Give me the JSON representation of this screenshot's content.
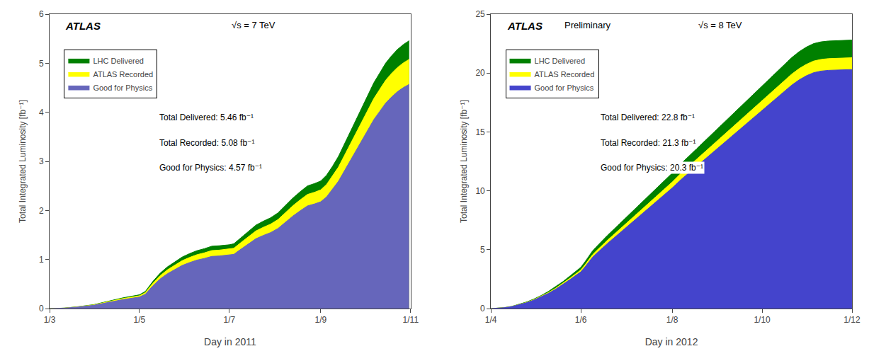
{
  "chart_data": [
    {
      "type": "area",
      "title": "ATLAS",
      "annotations": [
        "√s = 7 TeV",
        "Total Delivered: 5.46 fb⁻¹",
        "Total Recorded: 5.08 fb⁻¹",
        "Good for Physics: 4.57 fb⁻¹"
      ],
      "x_label": "Day in 2011",
      "y_label": "Total Integrated Luminosity [fb⁻¹]",
      "x": [
        0,
        2,
        10,
        20,
        30,
        40,
        50,
        61,
        65,
        70,
        75,
        80,
        85,
        90,
        95,
        100,
        105,
        110,
        115,
        122,
        125,
        130,
        135,
        140,
        145,
        150,
        155,
        160,
        165,
        170,
        175,
        180,
        184,
        188,
        192,
        196,
        200,
        204,
        208,
        212,
        216,
        220,
        224,
        228,
        232,
        236,
        240,
        244
      ],
      "series": [
        {
          "name": "LHC Delivered",
          "color": "#008000",
          "values": [
            0,
            0,
            0.01,
            0.04,
            0.08,
            0.15,
            0.22,
            0.28,
            0.35,
            0.55,
            0.72,
            0.85,
            0.95,
            1.05,
            1.12,
            1.18,
            1.22,
            1.27,
            1.28,
            1.3,
            1.32,
            1.45,
            1.58,
            1.7,
            1.78,
            1.85,
            1.95,
            2.1,
            2.25,
            2.38,
            2.5,
            2.55,
            2.6,
            2.72,
            2.9,
            3.1,
            3.35,
            3.6,
            3.85,
            4.1,
            4.35,
            4.6,
            4.8,
            5.0,
            5.15,
            5.28,
            5.38,
            5.46
          ]
        },
        {
          "name": "ATLAS Recorded",
          "color": "#ffff00",
          "values": [
            0,
            0,
            0.0093,
            0.0372,
            0.0744,
            0.1396,
            0.2047,
            0.2605,
            0.3256,
            0.5117,
            0.6699,
            0.7908,
            0.8839,
            0.9769,
            1.0421,
            1.0979,
            1.1351,
            1.1816,
            1.1909,
            1.2095,
            1.2281,
            1.3491,
            1.47,
            1.5817,
            1.6561,
            1.7212,
            1.8143,
            1.9538,
            2.0934,
            2.2144,
            2.326,
            2.3725,
            2.419,
            2.5307,
            2.6982,
            2.8842,
            3.1168,
            3.3495,
            3.5821,
            3.8147,
            4.0473,
            4.2799,
            4.4659,
            4.652,
            4.7916,
            4.9125,
            5.0056,
            5.08
          ]
        },
        {
          "name": "Good for Physics",
          "color": "#6666bb",
          "values": [
            0,
            0,
            0.0084,
            0.0335,
            0.067,
            0.1255,
            0.1841,
            0.2344,
            0.2929,
            0.4603,
            0.6026,
            0.7114,
            0.7951,
            0.8788,
            0.9374,
            0.9877,
            1.0211,
            1.063,
            1.0714,
            1.0881,
            1.1048,
            1.2136,
            1.3225,
            1.4229,
            1.4899,
            1.5484,
            1.6321,
            1.7577,
            1.8832,
            1.992,
            2.0925,
            2.1343,
            2.1762,
            2.2766,
            2.4273,
            2.5947,
            2.8039,
            3.0132,
            3.2224,
            3.4317,
            3.6409,
            3.8502,
            4.0176,
            4.185,
            4.3105,
            4.4193,
            4.503,
            4.57
          ]
        }
      ],
      "xlim": [
        0,
        245
      ],
      "xticks": [
        {
          "value": 0,
          "label": "1/3"
        },
        {
          "value": 61,
          "label": "1/5"
        },
        {
          "value": 122,
          "label": "1/7"
        },
        {
          "value": 184,
          "label": "1/9"
        },
        {
          "value": 245,
          "label": "1/11"
        }
      ],
      "ylim": [
        0,
        6
      ],
      "yticks": [
        0,
        1,
        2,
        3,
        4,
        5,
        6
      ],
      "grid": false,
      "legend": "upper left"
    },
    {
      "type": "area",
      "title": "ATLAS",
      "subtitle": "Preliminary",
      "annotations": [
        "√s = 8 TeV",
        "Total Delivered: 22.8 fb⁻¹",
        "Total Recorded: 21.3 fb⁻¹",
        "Good for Physics: 20.3 fb⁻¹"
      ],
      "x_label": "Day in 2012",
      "y_label": "Total Integrated Luminosity [fb⁻¹]",
      "x": [
        0,
        4,
        9,
        14,
        19,
        24,
        29,
        34,
        39,
        44,
        49,
        54,
        59,
        61,
        64,
        67,
        69,
        72,
        75,
        79,
        84,
        89,
        94,
        99,
        104,
        109,
        114,
        119,
        123,
        129,
        134,
        139,
        144,
        149,
        154,
        159,
        164,
        169,
        174,
        179,
        184,
        189,
        194,
        199,
        204,
        209,
        214,
        219,
        224,
        229,
        245
      ],
      "series": [
        {
          "name": "LHC Delivered",
          "color": "#008000",
          "values": [
            0,
            0.02,
            0.08,
            0.18,
            0.35,
            0.55,
            0.8,
            1.1,
            1.45,
            1.85,
            2.3,
            2.8,
            3.3,
            3.5,
            4.0,
            4.5,
            4.9,
            5.3,
            5.7,
            6.2,
            6.8,
            7.4,
            8.0,
            8.6,
            9.2,
            9.8,
            10.4,
            11.0,
            11.5,
            12.3,
            12.9,
            13.5,
            14.1,
            14.7,
            15.3,
            15.9,
            16.5,
            17.1,
            17.7,
            18.3,
            18.9,
            19.5,
            20.1,
            20.7,
            21.3,
            21.8,
            22.2,
            22.5,
            22.65,
            22.72,
            22.8
          ]
        },
        {
          "name": "ATLAS Recorded",
          "color": "#ffff00",
          "values": [
            0,
            0.019,
            0.075,
            0.168,
            0.327,
            0.514,
            0.747,
            1.028,
            1.355,
            1.728,
            2.149,
            2.616,
            3.083,
            3.27,
            3.737,
            4.204,
            4.578,
            4.951,
            5.325,
            5.792,
            6.353,
            6.913,
            7.474,
            8.034,
            8.595,
            9.155,
            9.716,
            10.276,
            10.743,
            11.491,
            12.051,
            12.612,
            13.172,
            13.733,
            14.293,
            14.854,
            15.414,
            15.975,
            16.536,
            17.096,
            17.657,
            18.217,
            18.778,
            19.338,
            19.899,
            20.366,
            20.739,
            21.02,
            21.16,
            21.225,
            21.3
          ]
        },
        {
          "name": "Good for Physics",
          "color": "#4444cc",
          "values": [
            0,
            0.018,
            0.071,
            0.16,
            0.312,
            0.49,
            0.712,
            0.979,
            1.291,
            1.647,
            2.048,
            2.493,
            2.938,
            3.116,
            3.561,
            4.007,
            4.363,
            4.719,
            5.075,
            5.52,
            6.054,
            6.589,
            7.123,
            7.657,
            8.191,
            8.725,
            9.26,
            9.794,
            10.239,
            10.951,
            11.485,
            12.02,
            12.554,
            13.088,
            13.622,
            14.157,
            14.691,
            15.225,
            15.759,
            16.293,
            16.828,
            17.362,
            17.896,
            18.43,
            18.964,
            19.41,
            19.766,
            20.033,
            20.166,
            20.229,
            20.3
          ]
        }
      ],
      "xlim": [
        0,
        245
      ],
      "xticks": [
        {
          "value": 0,
          "label": "1/4"
        },
        {
          "value": 61,
          "label": "1/6"
        },
        {
          "value": 123,
          "label": "1/8"
        },
        {
          "value": 184,
          "label": "1/10"
        },
        {
          "value": 245,
          "label": "1/12"
        }
      ],
      "ylim": [
        0,
        25
      ],
      "yticks": [
        0,
        5,
        10,
        15,
        20,
        25
      ],
      "grid": false,
      "legend": "upper left"
    }
  ]
}
